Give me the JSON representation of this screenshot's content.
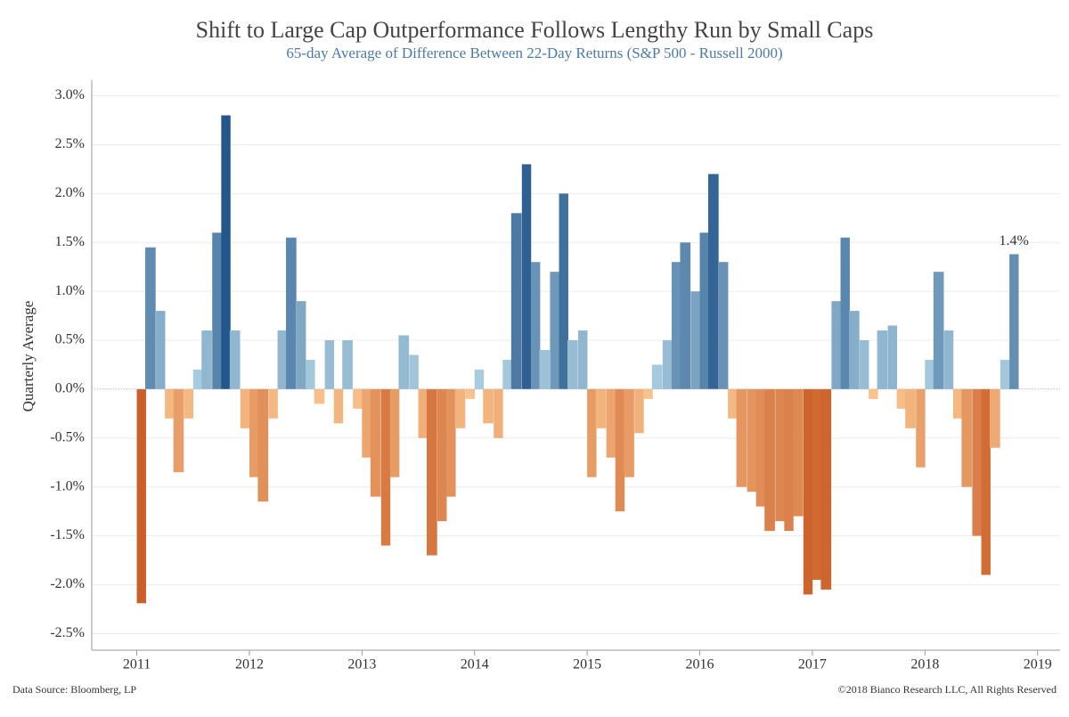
{
  "chart_data": {
    "type": "bar",
    "title": "Shift to Large Cap Outperformance Follows Lengthy Run by Small Caps",
    "subtitle": "65-day Average of Difference Between 22-Day Returns (S&P 500 - Russell 2000)",
    "ylabel": "Quarterly Average",
    "source": "Data Source: Bloomberg, LP",
    "copyright": "©2018 Bianco Research LLC, All Rights Reserved",
    "annotation": "1.4%",
    "positive_color": "#23568a",
    "positive_pale": "#b4d6e6",
    "negative_color": "#c4501a",
    "negative_pale": "#fbc690",
    "grid": true,
    "xlim": [
      2010.6,
      2019.2
    ],
    "xticks": [
      2011,
      2012,
      2013,
      2014,
      2015,
      2016,
      2017,
      2018,
      2019
    ],
    "ylim": [
      -2.67,
      3.16
    ],
    "yticks": [
      {
        "value": -2.5,
        "label": "-2.5%"
      },
      {
        "value": -2,
        "label": "-2.0%"
      },
      {
        "value": -1.5,
        "label": "-1.5%"
      },
      {
        "value": -1,
        "label": "-1.0%"
      },
      {
        "value": -0.5,
        "label": "-0.5%"
      },
      {
        "value": 0,
        "label": "0.0%"
      },
      {
        "value": 0.5,
        "label": "0.5%"
      },
      {
        "value": 1,
        "label": "1.0%"
      },
      {
        "value": 1.5,
        "label": "1.5%"
      },
      {
        "value": 2,
        "label": "2.0%"
      },
      {
        "value": 2.5,
        "label": "2.5%"
      },
      {
        "value": 3,
        "label": "3.0%"
      }
    ],
    "x": [
      2011.04,
      2011.12,
      2011.21,
      2011.29,
      2011.37,
      2011.46,
      2011.54,
      2011.62,
      2011.71,
      2011.79,
      2011.87,
      2011.96,
      2012.04,
      2012.12,
      2012.21,
      2012.29,
      2012.37,
      2012.46,
      2012.54,
      2012.62,
      2012.71,
      2012.79,
      2012.87,
      2012.96,
      2013.04,
      2013.12,
      2013.21,
      2013.29,
      2013.37,
      2013.46,
      2013.54,
      2013.62,
      2013.71,
      2013.79,
      2013.87,
      2013.96,
      2014.04,
      2014.12,
      2014.21,
      2014.29,
      2014.37,
      2014.46,
      2014.54,
      2014.62,
      2014.71,
      2014.79,
      2014.87,
      2014.96,
      2015.04,
      2015.12,
      2015.21,
      2015.29,
      2015.37,
      2015.46,
      2015.54,
      2015.62,
      2015.71,
      2015.79,
      2015.87,
      2015.96,
      2016.04,
      2016.12,
      2016.21,
      2016.29,
      2016.37,
      2016.46,
      2016.54,
      2016.62,
      2016.71,
      2016.79,
      2016.87,
      2016.96,
      2017.04,
      2017.12,
      2017.21,
      2017.29,
      2017.37,
      2017.46,
      2017.54,
      2017.62,
      2017.71,
      2017.79,
      2017.87,
      2017.96,
      2018.04,
      2018.12,
      2018.21,
      2018.29,
      2018.37,
      2018.46,
      2018.54,
      2018.62,
      2018.71,
      2018.79
    ],
    "values": [
      -2.19,
      1.45,
      0.8,
      -0.3,
      -0.85,
      -0.3,
      0.2,
      0.6,
      1.6,
      2.8,
      0.6,
      -0.4,
      -0.9,
      -1.15,
      -0.3,
      0.6,
      1.55,
      0.9,
      0.3,
      -0.15,
      0.5,
      -0.35,
      0.5,
      -0.2,
      -0.7,
      -1.1,
      -1.6,
      -0.9,
      0.55,
      0.35,
      -0.5,
      -1.7,
      -1.35,
      -1.1,
      -0.4,
      -0.1,
      0.2,
      -0.35,
      -0.5,
      0.3,
      1.8,
      2.3,
      1.3,
      0.4,
      1.2,
      2.0,
      0.5,
      0.6,
      -0.9,
      -0.4,
      -0.7,
      -1.25,
      -0.9,
      -0.45,
      -0.1,
      0.25,
      0.5,
      1.3,
      1.5,
      1.0,
      1.6,
      2.2,
      1.3,
      -0.3,
      -1.0,
      -1.05,
      -1.2,
      -1.45,
      -1.35,
      -1.45,
      -1.3,
      -2.1,
      -1.95,
      -2.05,
      0.9,
      1.55,
      0.8,
      0.5,
      -0.1,
      0.6,
      0.65,
      -0.2,
      -0.4,
      -0.8,
      0.3,
      1.2,
      0.6,
      -0.3,
      -1.0,
      -1.5,
      -1.9,
      -0.6,
      0.3,
      1.38
    ]
  }
}
